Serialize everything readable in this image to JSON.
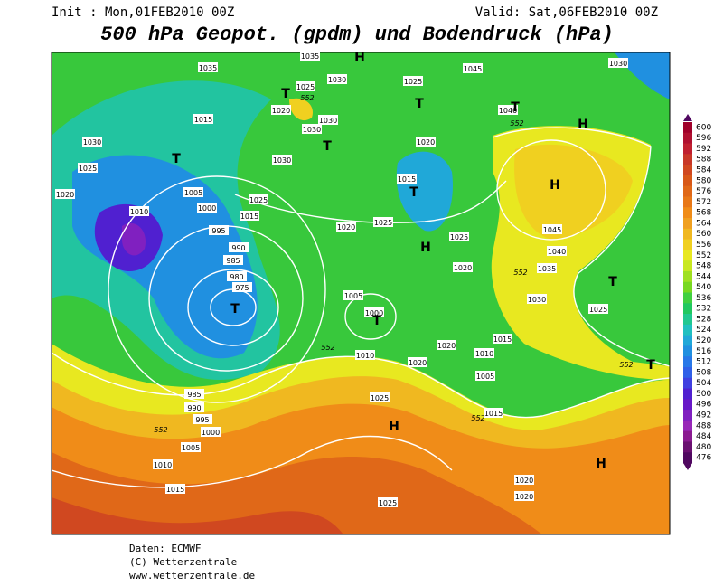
{
  "header": {
    "init": "Init : Mon,01FEB2010 00Z",
    "valid": "Valid: Sat,06FEB2010 00Z",
    "title": "500 hPa Geopot. (gpdm) und Bodendruck (hPa)"
  },
  "map": {
    "isobar_labels": [
      "1035",
      "1035",
      "1030",
      "1025",
      "1020",
      "1030",
      "1030",
      "1015",
      "1030",
      "1025",
      "1020",
      "1030",
      "1025",
      "1015",
      "1005",
      "1010",
      "1000",
      "995",
      "990",
      "985",
      "980",
      "975",
      "1020",
      "1025",
      "1020",
      "1025",
      "1045",
      "1030",
      "1040",
      "1015",
      "1025",
      "1020",
      "1045",
      "1040",
      "1035",
      "1030",
      "1025",
      "1005",
      "1000",
      "1010",
      "1020",
      "1020",
      "1010",
      "1005",
      "1015",
      "1015",
      "1025",
      "985",
      "990",
      "995",
      "1000",
      "1005",
      "1010",
      "1015",
      "1025",
      "1020",
      "1020"
    ],
    "height_labels": [
      "552",
      "552",
      "552",
      "552",
      "552",
      "552",
      "552"
    ],
    "centers": [
      "H",
      "T",
      "T",
      "T",
      "H",
      "T",
      "H",
      "T",
      "T",
      "H",
      "T",
      "T",
      "T",
      "H",
      "H",
      "T"
    ]
  },
  "colorbar": {
    "levels": [
      600,
      596,
      592,
      588,
      584,
      580,
      576,
      572,
      568,
      564,
      560,
      556,
      552,
      548,
      544,
      540,
      536,
      532,
      528,
      524,
      520,
      516,
      512,
      508,
      504,
      500,
      496,
      492,
      488,
      484,
      480,
      476
    ],
    "colors": [
      "#a0002a",
      "#b01030",
      "#c02030",
      "#c83828",
      "#d04820",
      "#d85818",
      "#e06818",
      "#e87818",
      "#f08c18",
      "#f0a020",
      "#f0b820",
      "#f0d020",
      "#e8e820",
      "#c8e820",
      "#a0e020",
      "#78d820",
      "#40d040",
      "#20c860",
      "#20c890",
      "#20c0c0",
      "#20a8d8",
      "#2090e0",
      "#2878e8",
      "#3060e8",
      "#4040e0",
      "#5020d0",
      "#6818c8",
      "#8020c0",
      "#9828b8",
      "#8a1a90",
      "#6a1070",
      "#500860"
    ]
  },
  "footer": [
    "Daten: ECMWF",
    "(C) Wetterzentrale",
    "www.wetterzentrale.de"
  ]
}
